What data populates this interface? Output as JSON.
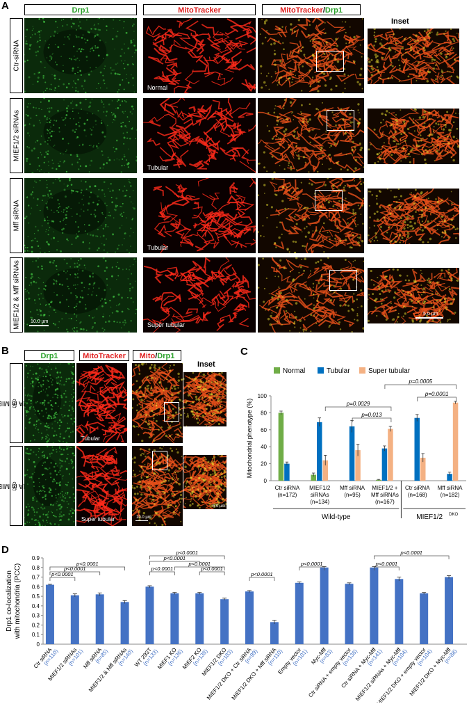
{
  "panel_A": {
    "label": "A",
    "headers": {
      "drp1": "Drp1",
      "mito": "MitoTracker",
      "merge_a": "MitoTracker",
      "merge_sep": "/",
      "merge_b": "Drp1",
      "inset": "Inset"
    },
    "rows": [
      {
        "label": "Ctr-siRNA",
        "phenotype": "Normal"
      },
      {
        "label": "MIEF1/2 siRNAs",
        "phenotype": "Tubular"
      },
      {
        "label": "Mff siRNA",
        "phenotype": "Tubular"
      },
      {
        "label": "MIEF1/2 & Mff siRNAs",
        "phenotype": "Super tubular"
      }
    ],
    "scalebar_main": "10.0 µm",
    "scalebar_inset": "5.0 µm"
  },
  "panel_B": {
    "label": "B",
    "headers": {
      "drp1": "Drp1",
      "mito": "MitoTracker",
      "merge_a": "Mito",
      "merge_sep": "/",
      "merge_b": "Drp1",
      "inset": "Inset"
    },
    "rows": [
      {
        "label": "Ctr-siRNA in MIEF1/2",
        "sup": "DKO",
        "phenotype": "Tubular"
      },
      {
        "label": "Mff siRNA in MIEF1/2",
        "sup": "DKO",
        "phenotype": "Super tubular"
      }
    ],
    "scalebar_main": "10.0 µm",
    "scalebar_inset": "5.0 µm"
  },
  "panel_C": {
    "label": "C",
    "group_wt": "Wild-type",
    "group_dko": "MIEF1/2",
    "group_dko_sup": "DKO"
  },
  "panel_D": {
    "label": "D"
  },
  "chart_data": [
    {
      "type": "bar",
      "panel": "C",
      "ylabel": "Mitochondrial phenotype (%)",
      "ylim": [
        0,
        100
      ],
      "yticks": [
        0,
        20,
        40,
        60,
        80,
        100
      ],
      "categories": [
        [
          "Ctr siRNA",
          "(n=172)"
        ],
        [
          "MIEF1/2",
          "siRNAs",
          "(n=134)"
        ],
        [
          "Mff siRNA",
          "(n=95)"
        ],
        [
          "MIEF1/2 +",
          "Mff siRNAs",
          "(n=167)"
        ],
        [
          "Ctr siRNA",
          "(n=168)"
        ],
        [
          "Mff siRNA",
          "(n=182)"
        ]
      ],
      "series": [
        {
          "name": "Normal",
          "color": "#70ad47",
          "values": [
            80,
            7,
            0,
            1,
            0,
            0
          ],
          "errors": [
            2,
            2,
            0,
            0.5,
            0,
            0
          ]
        },
        {
          "name": "Tubular",
          "color": "#0070c0",
          "values": [
            20,
            69,
            64,
            38,
            74,
            8
          ],
          "errors": [
            2,
            5,
            7,
            3,
            4,
            2
          ]
        },
        {
          "name": "Super tubular",
          "color": "#f4b183",
          "values": [
            0,
            24,
            36,
            61,
            27,
            92
          ],
          "errors": [
            0,
            6,
            7,
            3,
            5,
            1.5
          ]
        }
      ],
      "annotations": [
        {
          "from": 1,
          "to": 3,
          "text": "p=0.0029"
        },
        {
          "from": 2,
          "to": 3,
          "text": "p=0.013"
        },
        {
          "from": 3,
          "to": 5,
          "text": "p=0.0005"
        },
        {
          "from": 4,
          "to": 5,
          "text": "p=0.0001"
        }
      ]
    },
    {
      "type": "bar",
      "panel": "D",
      "ylabel": [
        "Drp1 co-localization",
        "with mitochondria (PCC)"
      ],
      "ylim": [
        0,
        0.9
      ],
      "yticks": [
        "0",
        "0.1",
        "0.2",
        "0.3",
        "0.4",
        "0.5",
        "0.6",
        "0.7",
        "0.8",
        "0.9"
      ],
      "color": "#4472c4",
      "categories": [
        {
          "label": "Ctr siRNA",
          "n": "(n=110)"
        },
        {
          "label": "MIEF1/2 siRNAs",
          "n": "(n=101)"
        },
        {
          "label": "Mff siRNA",
          "n": "(n=85)"
        },
        {
          "label": "MIEF1/2 & Mff siRNAs",
          "n": "(n=140)"
        },
        {
          "label": "WT 293T",
          "n": "(n=133)"
        },
        {
          "label": "MIEF1 KO",
          "n": "(n=136)"
        },
        {
          "label": "MIEF2 KO",
          "n": "(n=138)"
        },
        {
          "label": "MIEF1/2 DKO",
          "n": "(n=183)"
        },
        {
          "label": "MIEF1/2 DKO + Ctr siRNA",
          "n": "(n=99)"
        },
        {
          "label": "MIEF1/2 DKO + Mff siRNA",
          "n": "(n=110)"
        },
        {
          "label": "Empty vector",
          "n": "(n=101)"
        },
        {
          "label": "Myc-Mff",
          "n": "(n=83)"
        },
        {
          "label": "Ctr siRNA + empty vector",
          "n": "(n=138)"
        },
        {
          "label": "Ctr siRNA + Myc-Mff",
          "n": "(n=141)"
        },
        {
          "label": "MIEF1/2 siRNAs + Myc-Mff",
          "n": "(n=104)"
        },
        {
          "label": "MIEF1/2 DKO + empty vector",
          "n": "(n=104)"
        },
        {
          "label": "MIEF1/2 DKO + Myc-Mff",
          "n": "(n=88)"
        }
      ],
      "values": [
        0.62,
        0.51,
        0.52,
        0.44,
        0.6,
        0.53,
        0.53,
        0.47,
        0.55,
        0.23,
        0.64,
        0.8,
        0.63,
        0.8,
        0.68,
        0.53,
        0.7
      ],
      "errors": [
        0.005,
        0.015,
        0.015,
        0.015,
        0.01,
        0.01,
        0.01,
        0.01,
        0.01,
        0.02,
        0.01,
        0.01,
        0.01,
        0.01,
        0.02,
        0.01,
        0.015
      ],
      "annotations": [
        {
          "from": 0,
          "to": 1,
          "text": "p<0.0001"
        },
        {
          "from": 0,
          "to": 2,
          "text": "p<0.0001"
        },
        {
          "from": 0,
          "to": 3,
          "text": "p<0.0001"
        },
        {
          "from": 4,
          "to": 5,
          "text": "p<0.0001"
        },
        {
          "from": 4,
          "to": 6,
          "text": "p<0.0001"
        },
        {
          "from": 4,
          "to": 7,
          "text": "p<0.0001"
        },
        {
          "from": 5,
          "to": 7,
          "text": "p<0.0001"
        },
        {
          "from": 6,
          "to": 7,
          "text": "p<0.0001"
        },
        {
          "from": 8,
          "to": 9,
          "text": "p<0.0001"
        },
        {
          "from": 10,
          "to": 11,
          "text": "p<0.0001"
        },
        {
          "from": 13,
          "to": 14,
          "text": "p<0.0001"
        },
        {
          "from": 13,
          "to": 16,
          "text": "p<0.0001"
        }
      ]
    }
  ]
}
